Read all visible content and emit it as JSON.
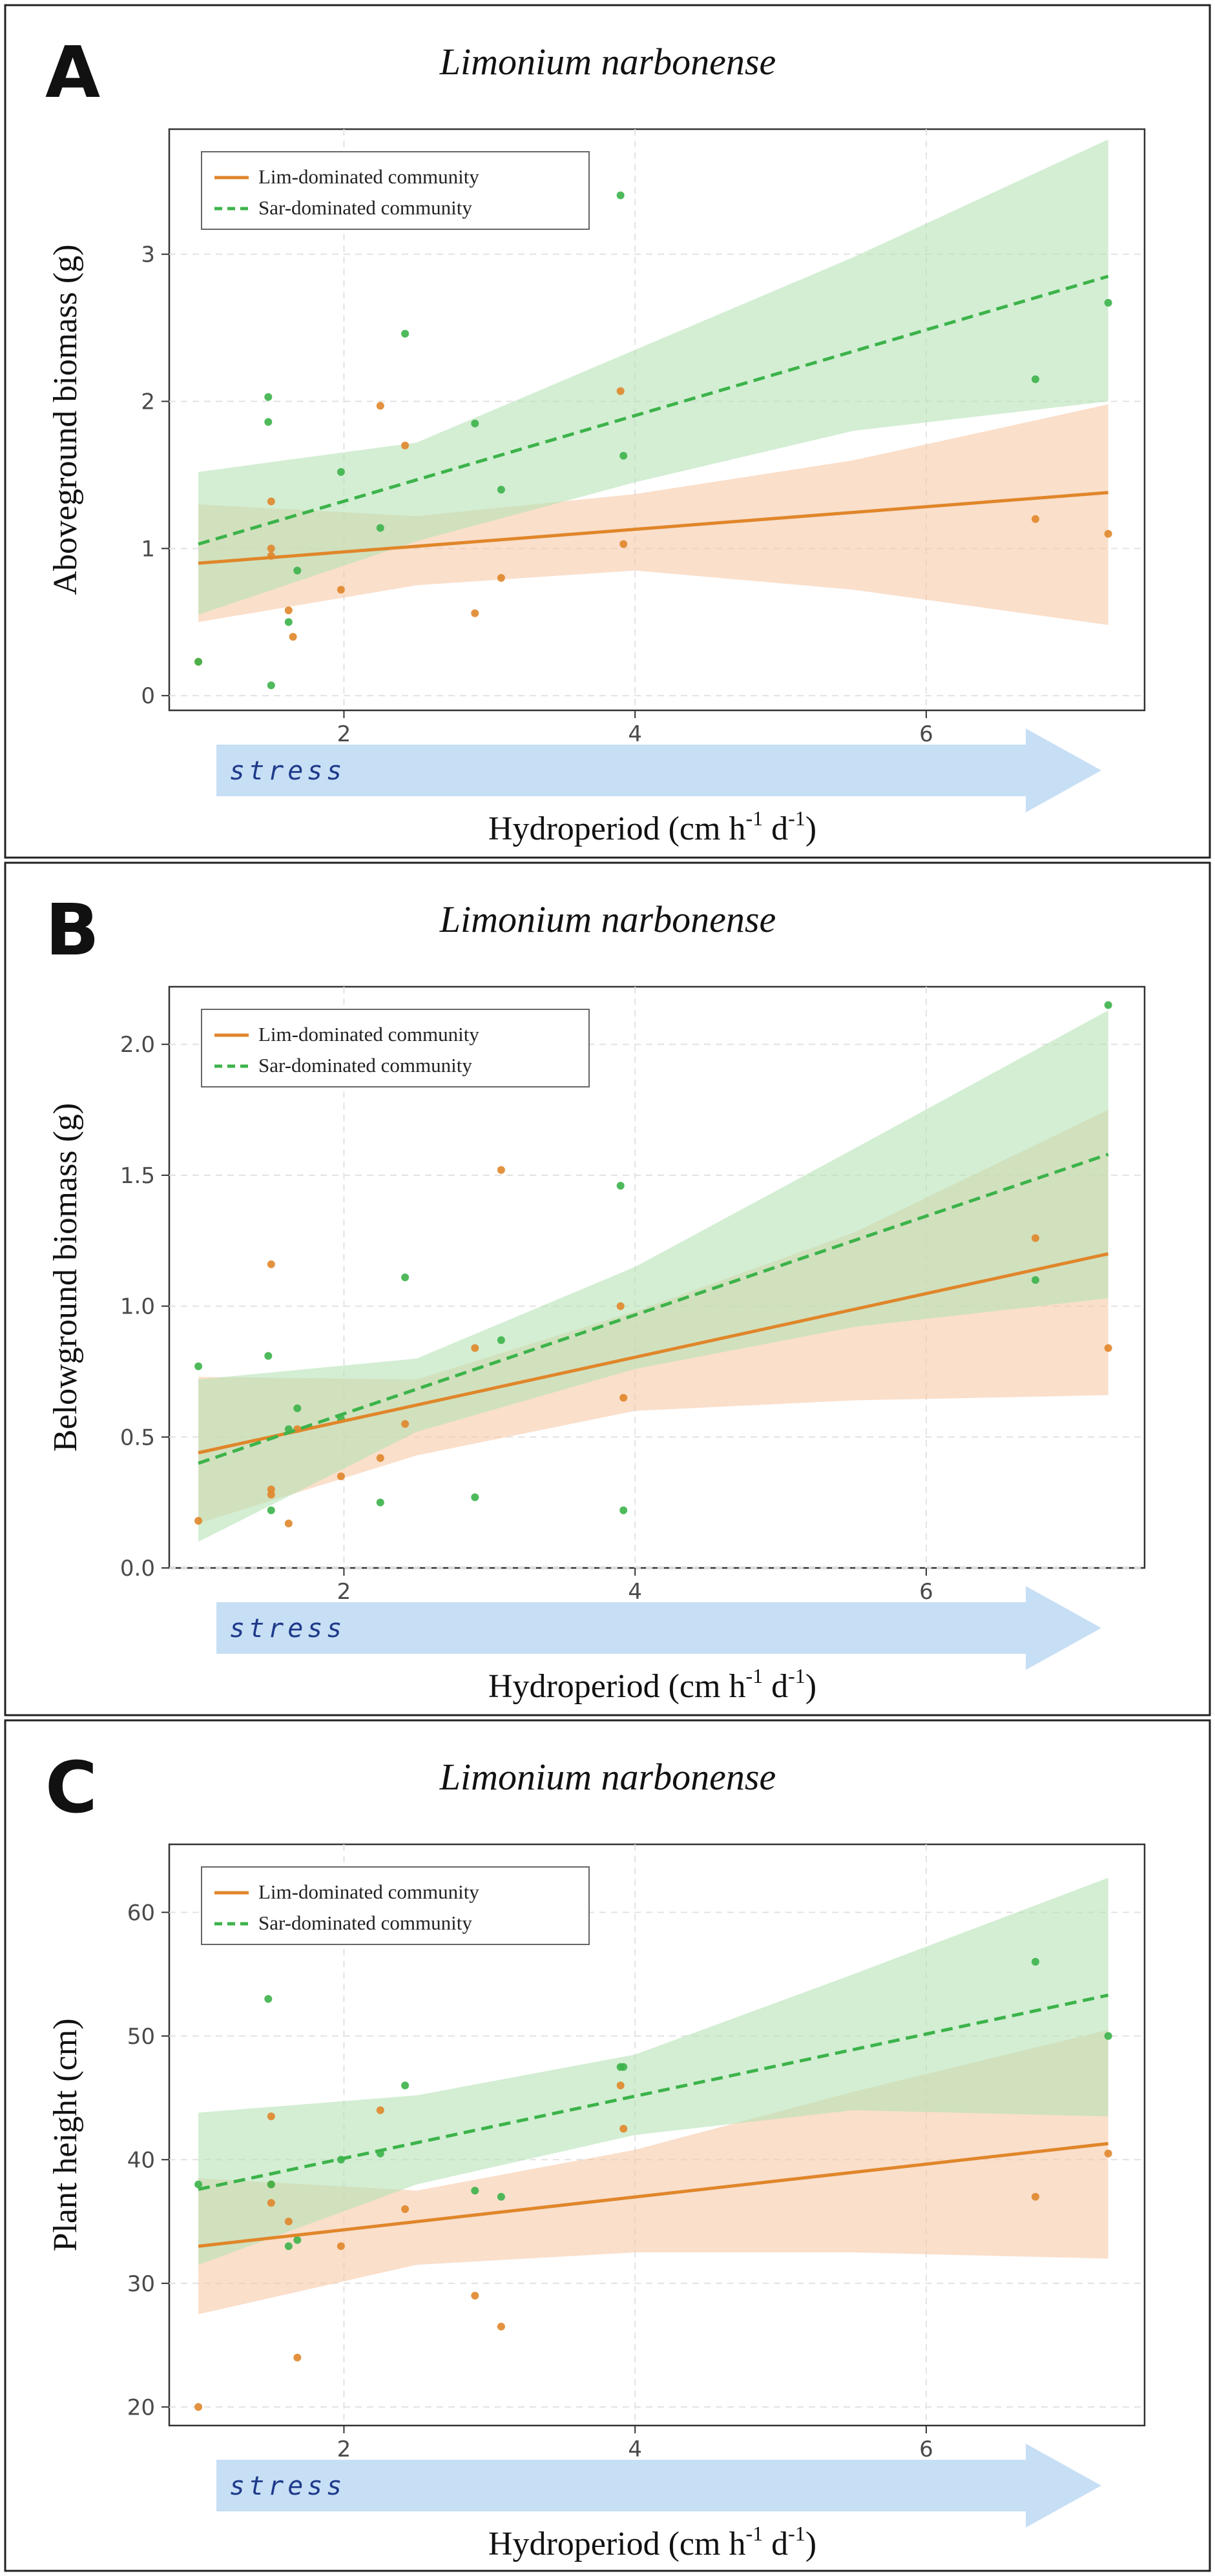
{
  "colors": {
    "lim": "#e0862a",
    "sar": "#3cb34a",
    "lim_band": "#f6c9a9",
    "sar_band": "#b6e2b6",
    "stress_arrow": "#c7dff5",
    "stress_text": "#1f3a8a"
  },
  "stress_label": "stress",
  "chart_data": [
    {
      "type": "scatter",
      "panel_letter": "A",
      "title": "Limonium narbonense",
      "xlabel": "Hydroperiod (cm h⁻¹ d⁻¹)",
      "ylabel": "Aboveground biomass (g)",
      "xlim": [
        0.8,
        7.5
      ],
      "ylim": [
        -0.1,
        3.85
      ],
      "xticks": [
        2,
        4,
        6
      ],
      "yticks": [
        0,
        1,
        2,
        3
      ],
      "legend_position": "top-left",
      "series": [
        {
          "name": "Lim-dominated community",
          "style": "solid",
          "fit": {
            "x": [
              1.0,
              7.25
            ],
            "y": [
              0.9,
              1.38
            ]
          },
          "band": {
            "x": [
              1.0,
              2.5,
              4.0,
              5.5,
              7.25
            ],
            "lower": [
              0.5,
              0.75,
              0.85,
              0.72,
              0.48
            ],
            "upper": [
              1.3,
              1.22,
              1.37,
              1.6,
              1.98
            ]
          },
          "points": [
            [
              1.0,
              0.23
            ],
            [
              1.5,
              1.32
            ],
            [
              1.5,
              1.0
            ],
            [
              1.5,
              0.95
            ],
            [
              1.62,
              0.58
            ],
            [
              1.65,
              0.4
            ],
            [
              1.98,
              0.72
            ],
            [
              2.25,
              1.97
            ],
            [
              2.42,
              1.7
            ],
            [
              2.9,
              0.56
            ],
            [
              3.08,
              0.8
            ],
            [
              3.9,
              2.07
            ],
            [
              3.92,
              1.03
            ],
            [
              6.75,
              1.2
            ],
            [
              7.25,
              1.1
            ]
          ]
        },
        {
          "name": "Sar-dominated community",
          "style": "dashed",
          "fit": {
            "x": [
              1.0,
              7.25
            ],
            "y": [
              1.03,
              2.85
            ]
          },
          "band": {
            "x": [
              1.0,
              2.5,
              4.0,
              5.5,
              7.25
            ],
            "lower": [
              0.55,
              1.05,
              1.45,
              1.8,
              2.0
            ],
            "upper": [
              1.52,
              1.72,
              2.35,
              2.98,
              3.78
            ]
          },
          "points": [
            [
              1.0,
              0.23
            ],
            [
              1.48,
              2.03
            ],
            [
              1.48,
              1.86
            ],
            [
              1.5,
              0.07
            ],
            [
              1.62,
              0.5
            ],
            [
              1.68,
              0.85
            ],
            [
              1.98,
              1.52
            ],
            [
              2.25,
              1.14
            ],
            [
              2.42,
              2.46
            ],
            [
              2.9,
              1.85
            ],
            [
              3.08,
              1.4
            ],
            [
              3.9,
              3.4
            ],
            [
              3.92,
              1.63
            ],
            [
              6.75,
              2.15
            ],
            [
              7.25,
              2.67
            ]
          ]
        }
      ]
    },
    {
      "type": "scatter",
      "panel_letter": "B",
      "title": "Limonium narbonense",
      "xlabel": "Hydroperiod (cm h⁻¹ d⁻¹)",
      "ylabel": "Belowground biomass (g)",
      "xlim": [
        0.8,
        7.5
      ],
      "ylim": [
        0.0,
        2.22
      ],
      "xticks": [
        2,
        4,
        6
      ],
      "yticks": [
        0.0,
        0.5,
        1.0,
        1.5,
        2.0
      ],
      "ytick_labels": [
        "0.0",
        "0.5",
        "1.0",
        "1.5",
        "2.0"
      ],
      "legend_position": "top-left",
      "series": [
        {
          "name": "Lim-dominated community",
          "style": "solid",
          "fit": {
            "x": [
              1.0,
              7.25
            ],
            "y": [
              0.44,
              1.2
            ]
          },
          "band": {
            "x": [
              1.0,
              2.5,
              4.0,
              5.5,
              7.25
            ],
            "lower": [
              0.17,
              0.43,
              0.6,
              0.64,
              0.66
            ],
            "upper": [
              0.73,
              0.72,
              0.98,
              1.28,
              1.75
            ]
          },
          "points": [
            [
              1.0,
              0.18
            ],
            [
              1.5,
              1.16
            ],
            [
              1.5,
              0.3
            ],
            [
              1.5,
              0.28
            ],
            [
              1.62,
              0.17
            ],
            [
              1.68,
              0.53
            ],
            [
              1.98,
              0.35
            ],
            [
              2.25,
              0.42
            ],
            [
              2.42,
              0.55
            ],
            [
              2.9,
              0.84
            ],
            [
              3.08,
              1.52
            ],
            [
              3.9,
              1.0
            ],
            [
              3.92,
              0.65
            ],
            [
              6.75,
              1.26
            ],
            [
              7.25,
              0.84
            ]
          ]
        },
        {
          "name": "Sar-dominated community",
          "style": "dashed",
          "fit": {
            "x": [
              1.0,
              7.25
            ],
            "y": [
              0.4,
              1.58
            ]
          },
          "band": {
            "x": [
              1.0,
              2.5,
              4.0,
              5.5,
              7.25
            ],
            "lower": [
              0.1,
              0.52,
              0.76,
              0.92,
              1.03
            ],
            "upper": [
              0.72,
              0.8,
              1.15,
              1.6,
              2.13
            ]
          },
          "points": [
            [
              1.0,
              0.77
            ],
            [
              1.48,
              0.81
            ],
            [
              1.5,
              0.22
            ],
            [
              1.62,
              0.53
            ],
            [
              1.68,
              0.61
            ],
            [
              1.98,
              0.57
            ],
            [
              2.25,
              0.25
            ],
            [
              2.42,
              1.11
            ],
            [
              2.9,
              0.27
            ],
            [
              3.08,
              0.87
            ],
            [
              3.9,
              1.46
            ],
            [
              3.92,
              0.22
            ],
            [
              6.75,
              1.1
            ],
            [
              7.25,
              2.15
            ]
          ]
        }
      ]
    },
    {
      "type": "scatter",
      "panel_letter": "C",
      "title": "Limonium narbonense",
      "xlabel": "Hydroperiod (cm h⁻¹ d⁻¹)",
      "ylabel": "Plant height (cm)",
      "xlim": [
        0.8,
        7.5
      ],
      "ylim": [
        18.5,
        65.5
      ],
      "xticks": [
        2,
        4,
        6
      ],
      "yticks": [
        20,
        30,
        40,
        50,
        60
      ],
      "legend_position": "top-left",
      "series": [
        {
          "name": "Lim-dominated community",
          "style": "solid",
          "fit": {
            "x": [
              1.0,
              7.25
            ],
            "y": [
              33.0,
              41.3
            ]
          },
          "band": {
            "x": [
              1.0,
              2.5,
              4.0,
              5.5,
              7.25
            ],
            "lower": [
              27.5,
              31.5,
              32.5,
              32.5,
              32.0
            ],
            "upper": [
              38.5,
              37.5,
              40.8,
              45.5,
              50.5
            ]
          },
          "points": [
            [
              1.0,
              20.0
            ],
            [
              1.5,
              43.5
            ],
            [
              1.5,
              38.0
            ],
            [
              1.5,
              36.5
            ],
            [
              1.62,
              35.0
            ],
            [
              1.68,
              24.0
            ],
            [
              1.98,
              33.0
            ],
            [
              2.25,
              44.0
            ],
            [
              2.42,
              36.0
            ],
            [
              2.9,
              29.0
            ],
            [
              3.08,
              26.5
            ],
            [
              3.9,
              46.0
            ],
            [
              3.92,
              42.5
            ],
            [
              6.75,
              37.0
            ],
            [
              7.25,
              40.5
            ]
          ]
        },
        {
          "name": "Sar-dominated community",
          "style": "dashed",
          "fit": {
            "x": [
              1.0,
              7.25
            ],
            "y": [
              37.6,
              53.3
            ]
          },
          "band": {
            "x": [
              1.0,
              2.5,
              4.0,
              5.5,
              7.25
            ],
            "lower": [
              31.5,
              38.0,
              42.0,
              44.0,
              43.5
            ],
            "upper": [
              43.8,
              45.2,
              48.5,
              55.0,
              62.8
            ]
          },
          "points": [
            [
              1.0,
              38.0
            ],
            [
              1.48,
              53.0
            ],
            [
              1.5,
              38.0
            ],
            [
              1.62,
              33.0
            ],
            [
              1.68,
              33.5
            ],
            [
              1.98,
              40.0
            ],
            [
              2.25,
              40.5
            ],
            [
              2.42,
              46.0
            ],
            [
              2.9,
              37.5
            ],
            [
              3.08,
              37.0
            ],
            [
              3.9,
              47.5
            ],
            [
              3.92,
              47.5
            ],
            [
              6.75,
              56.0
            ],
            [
              7.25,
              50.0
            ]
          ]
        }
      ]
    }
  ]
}
